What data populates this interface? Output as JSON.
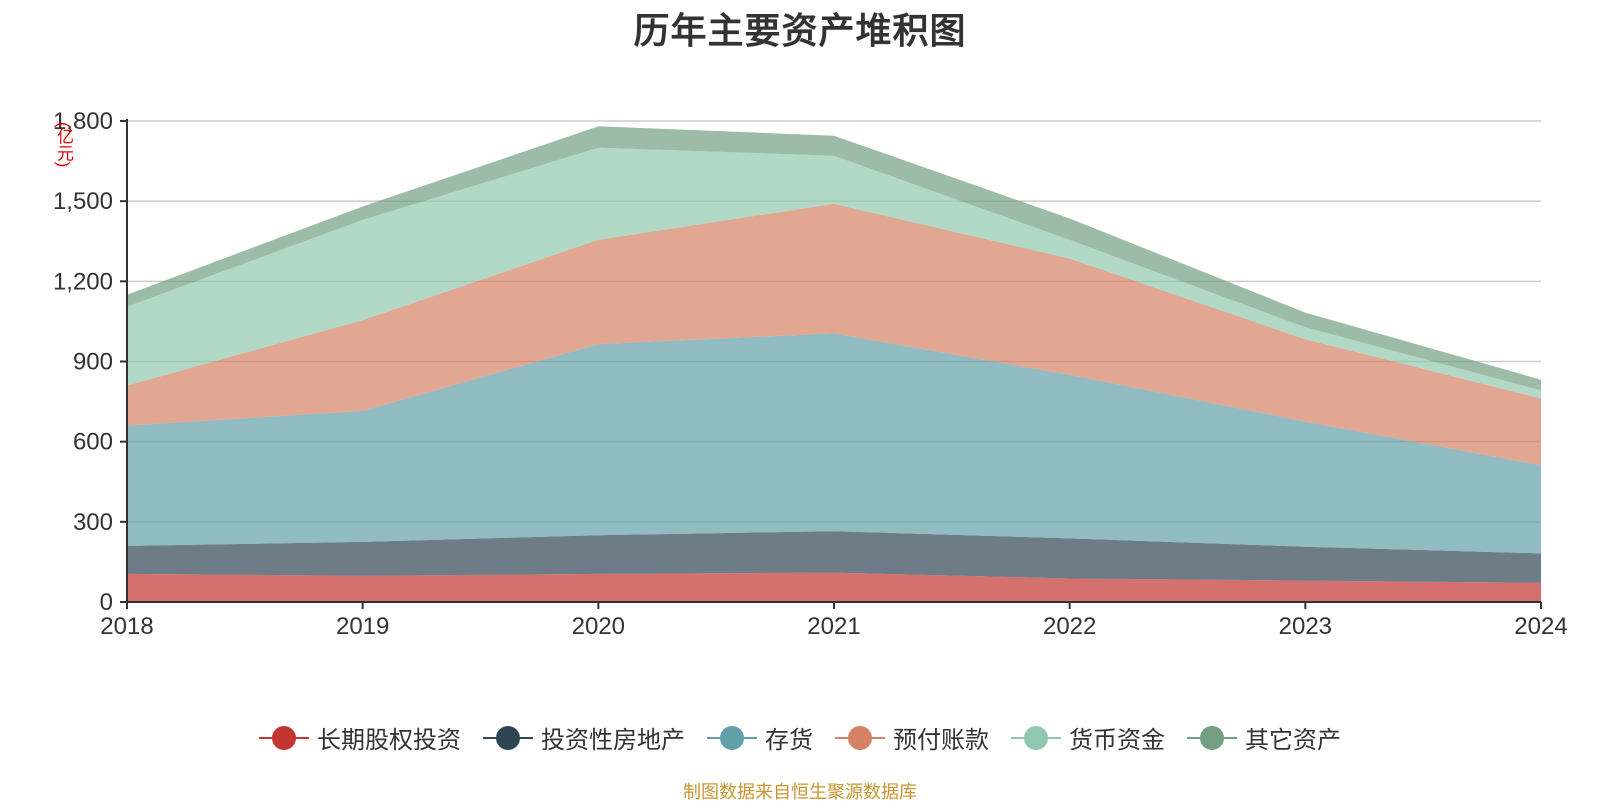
{
  "chart_data": {
    "type": "area",
    "stacked": true,
    "title": "历年主要资产堆积图",
    "unit_label": "(亿元)",
    "x": [
      "2018",
      "2019",
      "2020",
      "2021",
      "2022",
      "2023",
      "2024"
    ],
    "y_ticks": [
      "0",
      "300",
      "600",
      "900",
      "1,200",
      "1,500",
      "1,800"
    ],
    "ylim": [
      0,
      1800
    ],
    "grid": true,
    "legend_position": "bottom",
    "series": [
      {
        "name": "长期股权投资",
        "color": "#c23531",
        "values": [
          105,
          98,
          105,
          110,
          88,
          80,
          72
        ]
      },
      {
        "name": "投资性房地产",
        "color": "#2f4554",
        "values": [
          105,
          127,
          145,
          155,
          150,
          127,
          110
        ]
      },
      {
        "name": "存货",
        "color": "#61a0a8",
        "values": [
          450,
          490,
          715,
          740,
          612,
          468,
          330
        ]
      },
      {
        "name": "预付账款",
        "color": "#d48265",
        "values": [
          150,
          340,
          390,
          485,
          435,
          308,
          250
        ]
      },
      {
        "name": "货币资金",
        "color": "#91c7ae",
        "values": [
          295,
          375,
          345,
          180,
          70,
          45,
          30
        ]
      },
      {
        "name": "其它资产",
        "color": "#749f83",
        "values": [
          45,
          50,
          80,
          75,
          80,
          55,
          40
        ]
      }
    ]
  },
  "footer": "制图数据来自恒生聚源数据库"
}
